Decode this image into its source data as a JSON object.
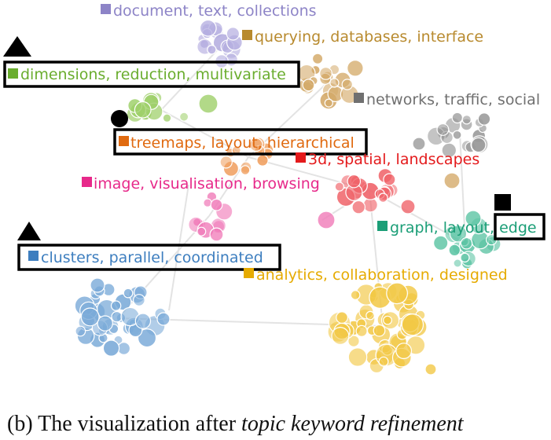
{
  "topics": [
    {
      "key": "document",
      "label": "document, text, collections",
      "color": "#8d84c7",
      "bubble_color": "#b5aee0"
    },
    {
      "key": "querying",
      "label": "querying, databases, interface",
      "color": "#b88a2e",
      "bubble_color": "#d4aa6a"
    },
    {
      "key": "dimensions",
      "label": "dimensions, reduction, multivariate",
      "color": "#6aad2e",
      "bubble_color": "#9fd06a"
    },
    {
      "key": "networks",
      "label": "networks, traffic, social",
      "color": "#707070",
      "bubble_color": "#9a9a9a"
    },
    {
      "key": "treemaps",
      "label": "treemaps, layout, hierarchical",
      "color": "#e06a10",
      "bubble_color": "#f0a060"
    },
    {
      "key": "spatial",
      "label": "3d, spatial, landscapes",
      "color": "#e41a1c",
      "bubble_color": "#f0646a"
    },
    {
      "key": "image",
      "label": "image, visualisation, browsing",
      "color": "#e7298a",
      "bubble_color": "#f07ab8"
    },
    {
      "key": "graph",
      "label": "graph, layout, edge",
      "color": "#1b9e77",
      "bubble_color": "#5cc4a4"
    },
    {
      "key": "clusters",
      "label": "clusters, parallel, coordinated",
      "color": "#3d7ebf",
      "bubble_color": "#7aaad8"
    },
    {
      "key": "analytics",
      "label": "analytics, collaboration, designed",
      "color": "#e6ab02",
      "bubble_color": "#f2c846"
    }
  ],
  "graph_label_parts": {
    "prefix": "graph, layout, ",
    "highlighted": "edge"
  },
  "caption": {
    "prefix": "(b) The visualization after ",
    "emphasis": "topic keyword refinement"
  }
}
